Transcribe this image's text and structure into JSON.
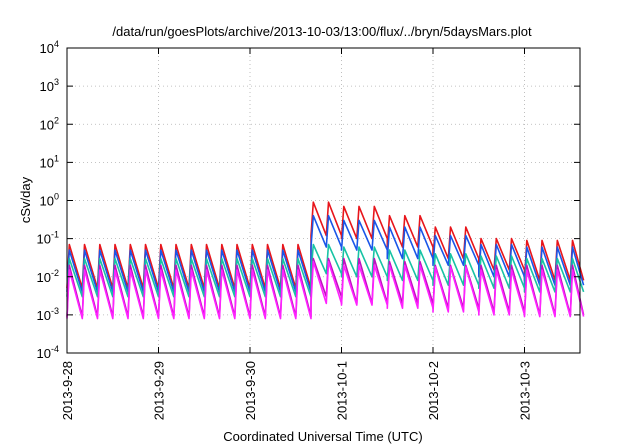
{
  "chart_data": {
    "type": "line",
    "title": "/data/run/goesPlots/archive/2013-10-03/13:00/flux/../bryn/5daysMars.plot",
    "xlabel": "Coordinated Universal Time (UTC)",
    "ylabel": "cSv/day",
    "yscale": "log",
    "ylim": [
      0.0001,
      10000
    ],
    "xlim": [
      "2013-09-28",
      "2013-10-03 15:30"
    ],
    "x_ticks": [
      "2013-9-28",
      "2013-9-29",
      "2013-9-30",
      "2013-10-1",
      "2013-10-2",
      "2013-10-3"
    ],
    "y_ticks": [
      {
        "base": "10",
        "exp": "-4",
        "value": 0.0001
      },
      {
        "base": "10",
        "exp": "-3",
        "value": 0.001
      },
      {
        "base": "10",
        "exp": "-2",
        "value": 0.01
      },
      {
        "base": "10",
        "exp": "-1",
        "value": 0.1
      },
      {
        "base": "10",
        "exp": "0",
        "value": 1
      },
      {
        "base": "10",
        "exp": "1",
        "value": 10
      },
      {
        "base": "10",
        "exp": "2",
        "value": 100
      },
      {
        "base": "10",
        "exp": "3",
        "value": 1000
      },
      {
        "base": "10",
        "exp": "4",
        "value": 10000
      }
    ],
    "grid": true,
    "sample_interval_hours": 4,
    "series": [
      {
        "color": "#e8151b",
        "values_per_day": {
          "2013-09-28": [
            0.07,
            0.005
          ],
          "2013-09-29": [
            0.07,
            0.005
          ],
          "2013-09-30": [
            0.07,
            0.005
          ],
          "2013-09-30 14:00": [
            0.9,
            0.12
          ],
          "2013-10-01": [
            0.7,
            0.1
          ],
          "2013-10-01 12:00": [
            0.4,
            0.06
          ],
          "2013-10-02": [
            0.2,
            0.03
          ],
          "2013-10-02 12:00": [
            0.1,
            0.015
          ],
          "2013-10-03": [
            0.09,
            0.008
          ]
        }
      },
      {
        "color": "#1a56e8",
        "values_per_day": {
          "2013-09-28": [
            0.05,
            0.004
          ],
          "2013-09-29": [
            0.05,
            0.004
          ],
          "2013-09-30": [
            0.05,
            0.004
          ],
          "2013-09-30 14:00": [
            0.4,
            0.06
          ],
          "2013-10-01": [
            0.3,
            0.05
          ],
          "2013-10-01 12:00": [
            0.2,
            0.03
          ],
          "2013-10-02": [
            0.12,
            0.02
          ],
          "2013-10-02 12:00": [
            0.07,
            0.01
          ],
          "2013-10-03": [
            0.06,
            0.006
          ]
        }
      },
      {
        "color": "#17c3a4",
        "values_per_day": {
          "2013-09-28": [
            0.03,
            0.003
          ],
          "2013-09-29": [
            0.03,
            0.003
          ],
          "2013-09-30": [
            0.03,
            0.003
          ],
          "2013-09-30 14:00": [
            0.07,
            0.012
          ],
          "2013-10-01": [
            0.06,
            0.01
          ],
          "2013-10-01 12:00": [
            0.05,
            0.008
          ],
          "2013-10-02": [
            0.04,
            0.006
          ],
          "2013-10-02 12:00": [
            0.035,
            0.005
          ],
          "2013-10-03": [
            0.03,
            0.004
          ]
        }
      },
      {
        "color": "#c010c0",
        "values_per_day": {
          "2013-09-28": [
            0.02,
            0.0009
          ],
          "2013-09-29": [
            0.02,
            0.0009
          ],
          "2013-09-30": [
            0.02,
            0.0009
          ],
          "2013-09-30 14:00": [
            0.03,
            0.003
          ],
          "2013-10-01": [
            0.03,
            0.002
          ],
          "2013-10-01 12:00": [
            0.025,
            0.002
          ],
          "2013-10-02": [
            0.02,
            0.0015
          ],
          "2013-10-02 12:00": [
            0.02,
            0.0012
          ],
          "2013-10-03": [
            0.02,
            0.001
          ]
        }
      },
      {
        "color": "#ff22ff",
        "values_per_day": {
          "2013-09-28": [
            0.015,
            0.0008
          ],
          "2013-09-29": [
            0.015,
            0.0008
          ],
          "2013-09-30": [
            0.015,
            0.0008
          ],
          "2013-09-30 14:00": [
            0.025,
            0.002
          ],
          "2013-10-01": [
            0.02,
            0.0018
          ],
          "2013-10-01 12:00": [
            0.02,
            0.0015
          ],
          "2013-10-02": [
            0.018,
            0.0012
          ],
          "2013-10-02 12:00": [
            0.015,
            0.001
          ],
          "2013-10-03": [
            0.015,
            0.0009
          ]
        }
      }
    ]
  }
}
